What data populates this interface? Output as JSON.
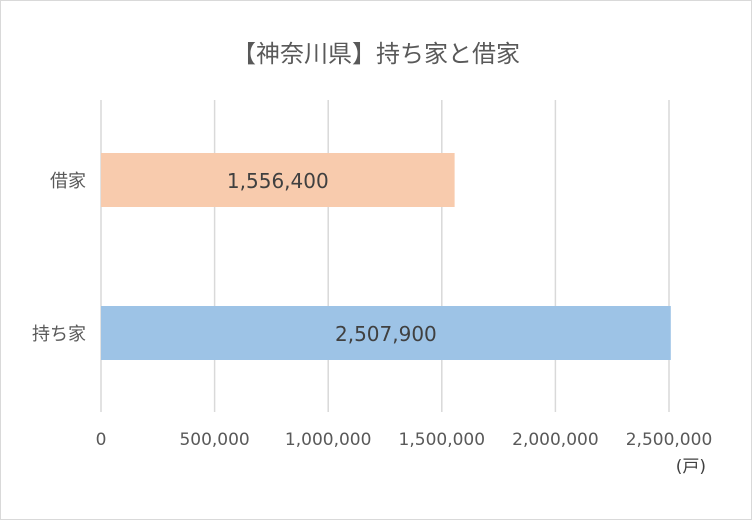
{
  "chart_data": {
    "type": "bar",
    "orientation": "horizontal",
    "title": "【神奈川県】持ち家と借家",
    "categories": [
      "借家",
      "持ち家"
    ],
    "values": [
      1556400,
      2507900
    ],
    "value_labels": [
      "1,556,400",
      "2,507,900"
    ],
    "bar_colors": [
      "#F8CBAD",
      "#9DC3E6"
    ],
    "xlim": [
      0,
      2500000
    ],
    "x_ticks": [
      0,
      500000,
      1000000,
      1500000,
      2000000,
      2500000
    ],
    "x_tick_labels": [
      "0",
      "500,000",
      "1,000,000",
      "1,500,000",
      "2,000,000",
      "2,500,000"
    ],
    "x_unit": "(戸)",
    "grid": true,
    "legend": "none"
  }
}
